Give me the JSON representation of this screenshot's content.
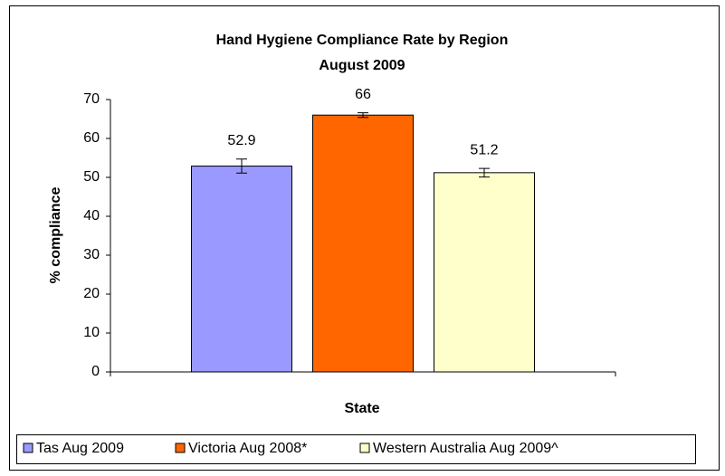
{
  "chart_data": {
    "type": "bar",
    "title": "Hand Hygiene Compliance Rate by Region",
    "subtitle": "August 2009",
    "x_label": "State",
    "y_label": "% compliance",
    "categories": [
      null
    ],
    "series": [
      {
        "name": "Tas Aug 2009",
        "color": "#9999ff",
        "values": [
          52.9
        ],
        "errors": [
          1.8
        ]
      },
      {
        "name": "Victoria Aug 2008*",
        "color": "#ff6600",
        "values": [
          66
        ],
        "errors": [
          0.6
        ]
      },
      {
        "name": "Western Australia Aug 2009^",
        "color": "#ffffcc",
        "values": [
          51.2
        ],
        "errors": [
          1.1
        ]
      }
    ],
    "ylim": [
      0,
      70
    ],
    "yticks": [
      0,
      10,
      20,
      30,
      40,
      50,
      60,
      70
    ],
    "grid": false,
    "legend": "bottom"
  }
}
